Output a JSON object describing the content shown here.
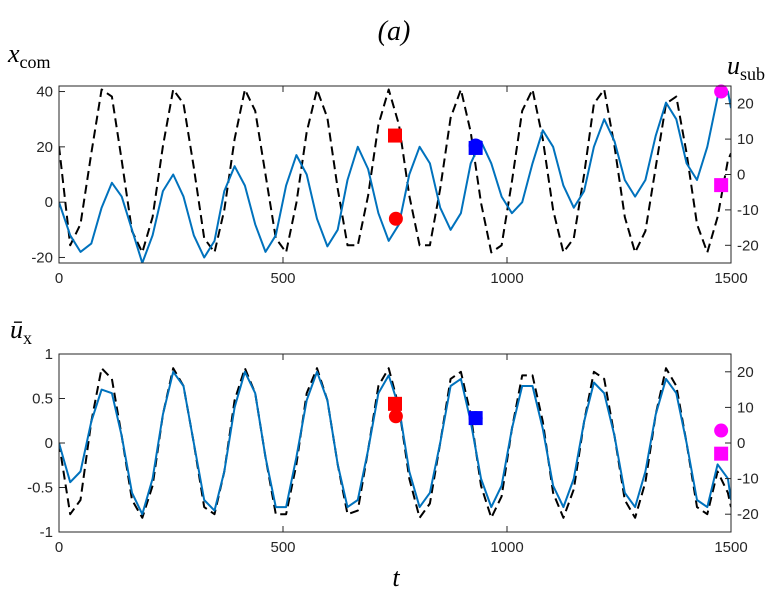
{
  "figure_label": "(a)",
  "chart_data": [
    {
      "type": "line",
      "panel": "top",
      "ylabel_left": {
        "main": "x",
        "sub": "com"
      },
      "ylabel_right": {
        "main": "u",
        "sub": "sub"
      },
      "xlim": [
        0,
        1500
      ],
      "ylim_left": [
        -22,
        42
      ],
      "ylim_right": [
        -25,
        25
      ],
      "xticks": [
        "0",
        "500",
        "1000",
        "1500"
      ],
      "yticks_left": [
        "40",
        "20",
        "0",
        "-20"
      ],
      "yticks_right": [
        "20",
        "10",
        "0",
        "-10",
        "-20"
      ],
      "grid": false,
      "series": [
        {
          "style": "dashed",
          "color": "#000000",
          "axis": "right",
          "x": [
            0,
            25,
            48,
            72,
            95,
            118,
            140,
            163,
            186,
            209,
            232,
            255,
            278,
            301,
            324,
            347,
            369,
            392,
            415,
            438,
            461,
            484,
            507,
            530,
            553,
            576,
            599,
            622,
            644,
            667,
            690,
            713,
            736,
            759,
            782,
            805,
            828,
            851,
            874,
            897,
            919,
            942,
            965,
            988,
            1011,
            1034,
            1057,
            1080,
            1103,
            1126,
            1149,
            1172,
            1194,
            1217,
            1240,
            1263,
            1286,
            1309,
            1332,
            1355,
            1378,
            1401,
            1424,
            1447,
            1470,
            1493,
            1500
          ],
          "y": [
            8,
            -20,
            -14,
            6,
            24,
            22,
            4,
            -16,
            -22,
            -12,
            8,
            24,
            20,
            2,
            -18,
            -22,
            -10,
            10,
            24,
            18,
            0,
            -18,
            -22,
            -8,
            12,
            24,
            16,
            -4,
            -20,
            -20,
            -6,
            14,
            24,
            14,
            -6,
            -20,
            -20,
            -4,
            16,
            24,
            12,
            -8,
            -22,
            -20,
            -2,
            18,
            24,
            10,
            -10,
            -22,
            -18,
            0,
            20,
            24,
            8,
            -12,
            -22,
            -16,
            2,
            20,
            22,
            6,
            -14,
            -22,
            -12,
            4,
            6
          ]
        },
        {
          "style": "solid",
          "color": "#0072BD",
          "axis": "left",
          "x": [
            0,
            25,
            48,
            72,
            95,
            118,
            140,
            163,
            186,
            209,
            232,
            255,
            278,
            301,
            324,
            347,
            369,
            392,
            415,
            438,
            461,
            484,
            507,
            530,
            553,
            576,
            599,
            622,
            644,
            667,
            690,
            713,
            736,
            759,
            782,
            805,
            828,
            851,
            874,
            897,
            919,
            942,
            965,
            988,
            1011,
            1034,
            1057,
            1080,
            1103,
            1126,
            1149,
            1172,
            1194,
            1217,
            1240,
            1263,
            1286,
            1309,
            1332,
            1355,
            1378,
            1401,
            1424,
            1447,
            1470,
            1493,
            1500
          ],
          "y": [
            0,
            -12,
            -18,
            -15,
            -2,
            7,
            2,
            -10,
            -22,
            -12,
            4,
            10,
            2,
            -12,
            -20,
            -14,
            4,
            13,
            6,
            -8,
            -18,
            -12,
            6,
            17,
            10,
            -6,
            -16,
            -10,
            8,
            20,
            12,
            -4,
            -14,
            -8,
            10,
            20,
            14,
            -2,
            -10,
            -4,
            14,
            22,
            14,
            2,
            -4,
            0,
            14,
            26,
            20,
            6,
            -2,
            4,
            20,
            30,
            22,
            8,
            2,
            8,
            24,
            36,
            30,
            14,
            8,
            20,
            38,
            40,
            34
          ]
        }
      ],
      "markers": [
        {
          "shape": "square",
          "color": "#FF0000",
          "x": 750,
          "y_right": 11
        },
        {
          "shape": "circle",
          "color": "#FF0000",
          "x": 752,
          "y_left": -6
        },
        {
          "shape": "circle",
          "color": "#0000FF",
          "x": 930,
          "y_left": 20.5
        },
        {
          "shape": "square",
          "color": "#0000FF",
          "x": 930,
          "y_right": 7.5
        },
        {
          "shape": "circle",
          "color": "#FF00FF",
          "x": 1478,
          "y_left": 40
        },
        {
          "shape": "square",
          "color": "#FF00FF",
          "x": 1478,
          "y_right": -3
        }
      ]
    },
    {
      "type": "line",
      "panel": "bottom",
      "ylabel_left": {
        "main": "ū",
        "sub": "x"
      },
      "xlabel": "t",
      "xlim": [
        0,
        1500
      ],
      "ylim_left": [
        -1,
        1
      ],
      "ylim_right": [
        -25,
        25
      ],
      "xticks": [
        "0",
        "500",
        "1000",
        "1500"
      ],
      "yticks_left": [
        "1",
        "0.5",
        "0",
        "-0.5",
        "-1"
      ],
      "yticks_right": [
        "20",
        "10",
        "0",
        "-10",
        "-20"
      ],
      "grid": false,
      "series": [
        {
          "style": "dashed",
          "color": "#000000",
          "axis": "right",
          "x": [
            0,
            25,
            48,
            72,
            95,
            118,
            140,
            163,
            186,
            209,
            232,
            255,
            278,
            301,
            324,
            347,
            369,
            392,
            415,
            438,
            461,
            484,
            507,
            530,
            553,
            576,
            599,
            622,
            644,
            667,
            690,
            713,
            736,
            759,
            782,
            805,
            828,
            851,
            874,
            897,
            919,
            942,
            965,
            988,
            1011,
            1034,
            1057,
            1080,
            1103,
            1126,
            1149,
            1172,
            1194,
            1217,
            1240,
            1263,
            1286,
            1309,
            1332,
            1355,
            1378,
            1401,
            1424,
            1447,
            1470,
            1493,
            1500
          ],
          "y": [
            0,
            -20,
            -16,
            6,
            21,
            18,
            2,
            -16,
            -21,
            -12,
            8,
            21,
            16,
            0,
            -18,
            -20,
            -8,
            12,
            21,
            14,
            -4,
            -20,
            -20,
            -6,
            14,
            21,
            12,
            -6,
            -20,
            -19,
            -2,
            16,
            21,
            10,
            -10,
            -21,
            -17,
            0,
            18,
            20,
            8,
            -12,
            -21,
            -15,
            4,
            19,
            19,
            6,
            -14,
            -21,
            -13,
            6,
            20,
            18,
            2,
            -16,
            -21,
            -11,
            8,
            21,
            16,
            0,
            -18,
            -20,
            -8,
            -14,
            -18
          ]
        },
        {
          "style": "solid",
          "color": "#0072BD",
          "axis": "right",
          "x": [
            0,
            25,
            48,
            72,
            95,
            118,
            140,
            163,
            186,
            209,
            232,
            255,
            278,
            301,
            324,
            347,
            369,
            392,
            415,
            438,
            461,
            484,
            507,
            530,
            553,
            576,
            599,
            622,
            644,
            667,
            690,
            713,
            736,
            759,
            782,
            805,
            828,
            851,
            874,
            897,
            919,
            942,
            965,
            988,
            1011,
            1034,
            1057,
            1080,
            1103,
            1126,
            1149,
            1172,
            1194,
            1217,
            1240,
            1263,
            1286,
            1309,
            1332,
            1355,
            1378,
            1401,
            1424,
            1447,
            1470,
            1493,
            1500
          ],
          "y": [
            0,
            -11,
            -8,
            6,
            15,
            14,
            2,
            -14,
            -20,
            -10,
            8,
            20,
            16,
            0,
            -16,
            -19,
            -8,
            10,
            20,
            14,
            -4,
            -18,
            -18,
            -4,
            12,
            20,
            12,
            -6,
            -18,
            -16,
            -2,
            14,
            19,
            10,
            -8,
            -18,
            -14,
            0,
            16,
            18,
            6,
            -10,
            -18,
            -12,
            4,
            16,
            16,
            4,
            -12,
            -18,
            -10,
            6,
            17,
            14,
            2,
            -14,
            -18,
            -8,
            8,
            18,
            14,
            0,
            -16,
            -18,
            -6,
            -10,
            -16
          ]
        }
      ],
      "markers": [
        {
          "shape": "square",
          "color": "#FF0000",
          "x": 750,
          "y_right": 11
        },
        {
          "shape": "circle",
          "color": "#FF0000",
          "x": 752,
          "y_right": 7.5
        },
        {
          "shape": "circle",
          "color": "#0000FF",
          "x": 930,
          "y_right": 7
        },
        {
          "shape": "square",
          "color": "#0000FF",
          "x": 930,
          "y_right": 7
        },
        {
          "shape": "circle",
          "color": "#FF00FF",
          "x": 1478,
          "y_right": 3.5
        },
        {
          "shape": "square",
          "color": "#FF00FF",
          "x": 1478,
          "y_right": -3
        }
      ]
    }
  ]
}
